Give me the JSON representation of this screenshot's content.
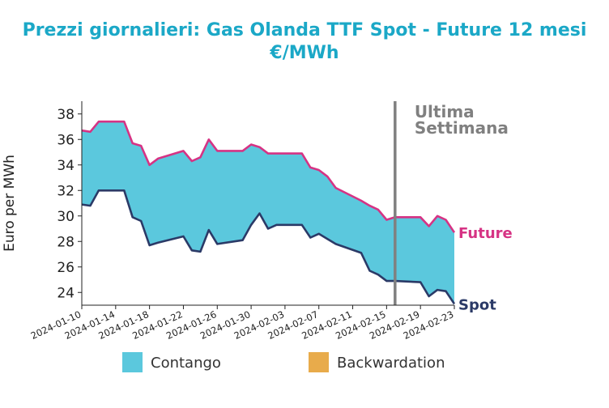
{
  "chart_data": {
    "type": "area",
    "title_line1": "Prezzi giornalieri: Gas Olanda TTF Spot - Future 12 mesi",
    "title_line2": "€/MWh",
    "ylabel": "Euro per MWh",
    "xlabel": "",
    "ylim": [
      23,
      39
    ],
    "yticks": [
      24,
      26,
      28,
      30,
      32,
      34,
      36,
      38
    ],
    "xlim": [
      "2024-01-10",
      "2024-02-23"
    ],
    "xticks": [
      "2024-01-10",
      "2024-01-14",
      "2024-01-18",
      "2024-01-22",
      "2024-01-26",
      "2024-01-30",
      "2024-02-03",
      "2024-02-07",
      "2024-02-11",
      "2024-02-15",
      "2024-02-19",
      "2024-02-23"
    ],
    "annotation": "Ultima\nSettimana",
    "annotation_date": "2024-02-16",
    "series": [
      {
        "name": "Future",
        "color": "#d63384",
        "x": [
          "2024-01-10",
          "2024-01-11",
          "2024-01-12",
          "2024-01-15",
          "2024-01-16",
          "2024-01-17",
          "2024-01-18",
          "2024-01-19",
          "2024-01-22",
          "2024-01-23",
          "2024-01-24",
          "2024-01-25",
          "2024-01-26",
          "2024-01-29",
          "2024-01-30",
          "2024-01-31",
          "2024-02-01",
          "2024-02-02",
          "2024-02-05",
          "2024-02-06",
          "2024-02-07",
          "2024-02-08",
          "2024-02-09",
          "2024-02-12",
          "2024-02-13",
          "2024-02-14",
          "2024-02-15",
          "2024-02-16",
          "2024-02-19",
          "2024-02-20",
          "2024-02-21",
          "2024-02-22",
          "2024-02-23"
        ],
        "values": [
          36.7,
          36.6,
          37.4,
          37.4,
          35.7,
          35.5,
          34.0,
          34.5,
          35.1,
          34.3,
          34.6,
          36.0,
          35.1,
          35.1,
          35.6,
          35.4,
          34.9,
          34.9,
          34.9,
          33.8,
          33.6,
          33.1,
          32.2,
          31.2,
          30.8,
          30.5,
          29.7,
          29.9,
          29.9,
          29.2,
          30.0,
          29.7,
          28.7
        ]
      },
      {
        "name": "Spot",
        "color": "#2b3a67",
        "x": [
          "2024-01-10",
          "2024-01-11",
          "2024-01-12",
          "2024-01-15",
          "2024-01-16",
          "2024-01-17",
          "2024-01-18",
          "2024-01-19",
          "2024-01-22",
          "2024-01-23",
          "2024-01-24",
          "2024-01-25",
          "2024-01-26",
          "2024-01-29",
          "2024-01-30",
          "2024-01-31",
          "2024-02-01",
          "2024-02-02",
          "2024-02-05",
          "2024-02-06",
          "2024-02-07",
          "2024-02-08",
          "2024-02-09",
          "2024-02-12",
          "2024-02-13",
          "2024-02-14",
          "2024-02-15",
          "2024-02-16",
          "2024-02-19",
          "2024-02-20",
          "2024-02-21",
          "2024-02-22",
          "2024-02-23"
        ],
        "values": [
          30.9,
          30.8,
          32.0,
          32.0,
          29.9,
          29.6,
          27.7,
          27.9,
          28.4,
          27.3,
          27.2,
          28.9,
          27.8,
          28.1,
          29.3,
          30.2,
          29.0,
          29.3,
          29.3,
          28.3,
          28.6,
          28.2,
          27.8,
          27.1,
          25.7,
          25.4,
          24.9,
          24.9,
          24.8,
          23.7,
          24.2,
          24.1,
          23.1
        ]
      }
    ],
    "fill_colors": {
      "contango": "#5bc8dd",
      "backwardation": "#e8ab4b"
    },
    "legend": {
      "position": "bottom",
      "items": [
        {
          "label": "Contango",
          "color": "#5bc8dd"
        },
        {
          "label": "Backwardation",
          "color": "#e8ab4b"
        }
      ]
    },
    "grid": false
  }
}
